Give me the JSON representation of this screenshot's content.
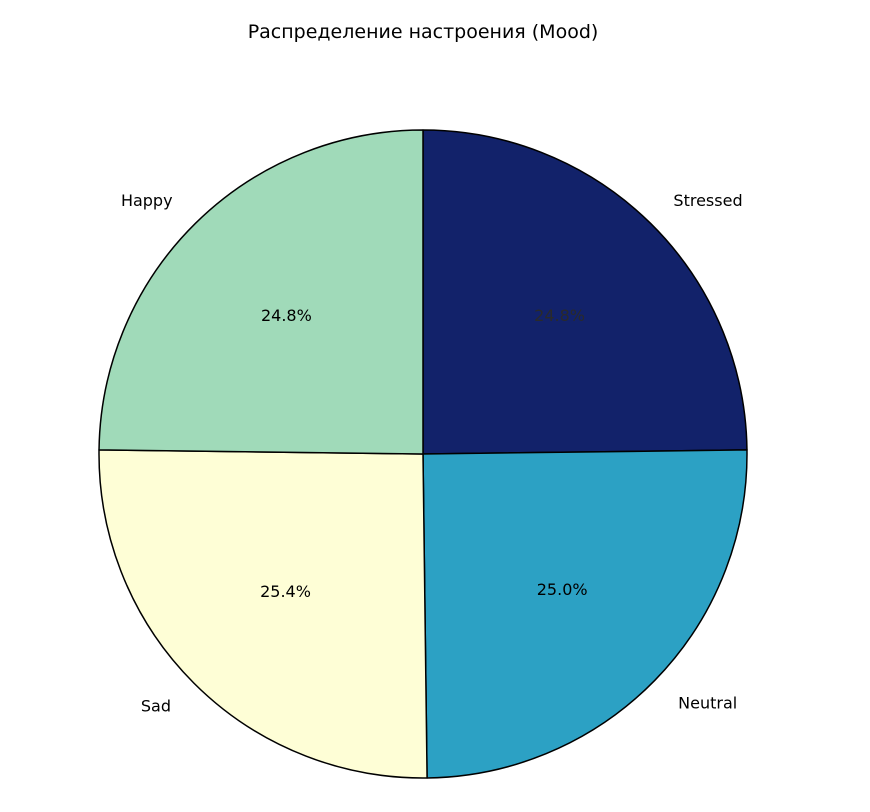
{
  "chart_data": {
    "type": "pie",
    "title": "Распределение настроения (Mood)",
    "slices": [
      {
        "label": "Stressed",
        "value": 24.8,
        "pct_label": "24.8%",
        "color": "#12226a"
      },
      {
        "label": "Neutral",
        "value": 25.0,
        "pct_label": "25.0%",
        "color": "#2ca1c4"
      },
      {
        "label": "Sad",
        "value": 25.4,
        "pct_label": "25.4%",
        "color": "#fefed6"
      },
      {
        "label": "Happy",
        "value": 24.8,
        "pct_label": "24.8%",
        "color": "#a0dab9"
      }
    ],
    "start_angle_deg": 90,
    "direction": "clockwise",
    "edge_color": "#000000",
    "legend": "none"
  }
}
